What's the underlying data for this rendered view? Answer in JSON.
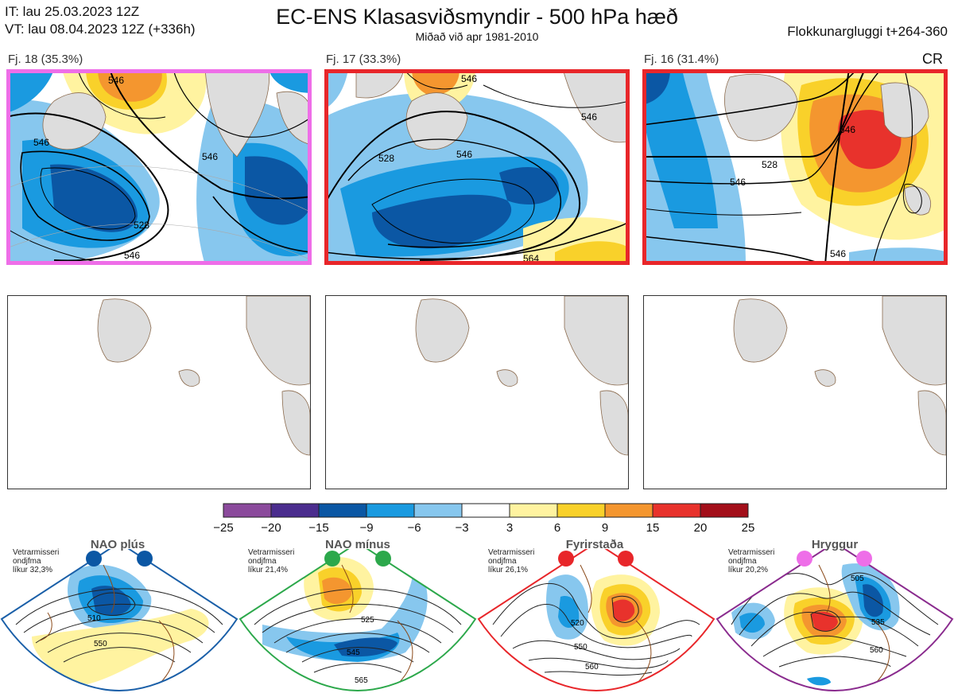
{
  "header": {
    "init_time": "IT: lau 25.03.2023 12Z",
    "valid_time": "VT: lau 08.04.2023 12Z  (+336h)",
    "title": "EC-ENS Klasasviðsmyndir - 500 hPa hæð",
    "subtitle": "Miðað við apr 1981-2010",
    "window": "Flokkunargluggi t+264-360",
    "cr": "CR"
  },
  "clusters": [
    {
      "caption": "Fj. 18 (35.3%)",
      "frame_color": "#ee6ee8",
      "contour_labels": [
        "546",
        "546",
        "546",
        "528",
        "546"
      ]
    },
    {
      "caption": "Fj. 17 (33.3%)",
      "frame_color": "#e8262a",
      "contour_labels": [
        "546",
        "546",
        "528",
        "546",
        "564"
      ]
    },
    {
      "caption": "Fj. 16 (31.4%)",
      "frame_color": "#e8262a",
      "contour_labels": [
        "546",
        "528",
        "546",
        "546"
      ]
    }
  ],
  "colorbar": {
    "ticks": [
      "−25",
      "−20",
      "−15",
      "−9",
      "−6",
      "−3",
      "3",
      "6",
      "9",
      "15",
      "20",
      "25"
    ],
    "colors": [
      "#8b4a9c",
      "#4b2d8e",
      "#0b57a4",
      "#1a9ae0",
      "#87c7ee",
      "#ffffff",
      "#fff3a0",
      "#f9d12a",
      "#f4962f",
      "#e8322c",
      "#a30f1a"
    ]
  },
  "regimes": [
    {
      "name": "NAO plús",
      "meta_line1": "Vetrarmisseri",
      "meta_line2": "ondjfma",
      "meta_line3": "líkur 32,3%",
      "fan_color": "#1a5fa8",
      "dot_color": "#0b57a4",
      "labels": [
        "510",
        "550"
      ]
    },
    {
      "name": "NAO mínus",
      "meta_line1": "Vetrarmisseri",
      "meta_line2": "ondjfma",
      "meta_line3": "líkur 21,4%",
      "fan_color": "#2ca84b",
      "dot_color": "#2ca84b",
      "labels": [
        "525",
        "545",
        "565"
      ]
    },
    {
      "name": "Fyrirstaða",
      "meta_line1": "Vetrarmisseri",
      "meta_line2": "ondjfma",
      "meta_line3": "líkur 26,1%",
      "fan_color": "#e8262a",
      "dot_color": "#e8262a",
      "labels": [
        "520",
        "550",
        "560"
      ]
    },
    {
      "name": "Hryggur",
      "meta_line1": "Vetrarmisseri",
      "meta_line2": "ondjfma",
      "meta_line3": "líkur 20,2%",
      "fan_color": "#8a2b8e",
      "dot_color": "#ee6ee8",
      "labels": [
        "505",
        "535",
        "560"
      ]
    }
  ]
}
